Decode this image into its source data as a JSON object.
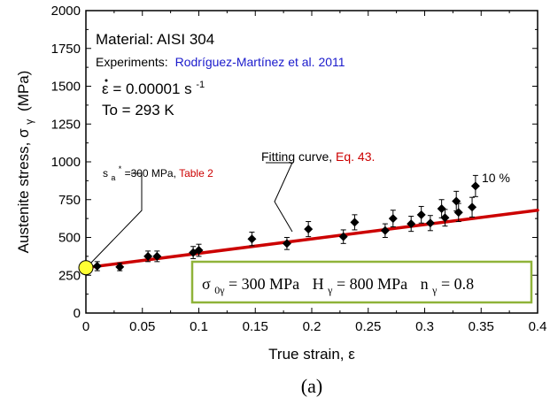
{
  "chart_data": {
    "type": "scatter",
    "xlabel": "True strain, ε",
    "ylabel": "Austenite stress, σ",
    "ylabel_sub": "γ",
    "ylabel_unit": "(MPa)",
    "xlim": [
      0,
      0.4
    ],
    "ylim": [
      0,
      2000
    ],
    "x_ticks": [
      0,
      0.05,
      0.1,
      0.15,
      0.2,
      0.25,
      0.3,
      0.35,
      0.4
    ],
    "x_tick_labels": [
      "0",
      "0.05",
      "0.1",
      "0.15",
      "0.2",
      "0.25",
      "0.3",
      "0.35",
      "0.4"
    ],
    "y_ticks": [
      0,
      250,
      500,
      750,
      1000,
      1250,
      1500,
      1750,
      2000
    ],
    "y_tick_labels": [
      "0",
      "250",
      "500",
      "750",
      "1000",
      "1250",
      "1500",
      "1750",
      "2000"
    ],
    "grid": false,
    "caption": "(a)",
    "colors": {
      "fit": "#cc0000",
      "points": "#000000",
      "start_marker": "#ffff33",
      "box_border": "#8fb339",
      "link": "#1a1acc"
    },
    "info": {
      "material": "Material: AISI 304",
      "experiments_label": "Experiments:",
      "experiments_ref": "Rodríguez-Martínez et al.  2011",
      "strain_rate_symbol": "ε",
      "strain_rate_value": " = 0.00001 s",
      "strain_rate_exp": "-1",
      "temperature": "To = 293 K"
    },
    "annotations": {
      "fit_label": "Fitting curve, ",
      "fit_ref": "Eq. 43.",
      "init_sym": "s",
      "init_sub": "a",
      "init_sup": "*",
      "init_val": "=300 MPa, ",
      "init_ref": "Table 2",
      "percent": "10 %"
    },
    "param_box": {
      "sigma": "σ",
      "sigma_sub": "0γ",
      "sigma_val": " = 300 MPa",
      "h": "H",
      "h_sub": "γ",
      "h_val": " = 800 MPa",
      "n": "n",
      "n_sub": "γ",
      "n_val": " = 0.8"
    },
    "series": [
      {
        "kind": "experiment",
        "x": [
          0.01,
          0.03,
          0.055,
          0.063,
          0.095,
          0.1,
          0.147,
          0.178,
          0.197,
          0.228,
          0.238,
          0.265,
          0.272,
          0.288,
          0.297,
          0.305,
          0.315,
          0.318,
          0.328,
          0.33,
          0.342,
          0.345
        ],
        "y": [
          310,
          305,
          375,
          375,
          400,
          415,
          490,
          460,
          555,
          505,
          600,
          545,
          625,
          590,
          650,
          595,
          690,
          630,
          740,
          665,
          700,
          840
        ],
        "err": [
          30,
          25,
          35,
          35,
          40,
          40,
          45,
          40,
          50,
          45,
          50,
          45,
          55,
          50,
          55,
          50,
          60,
          55,
          65,
          60,
          65,
          70
        ]
      },
      {
        "kind": "fit",
        "x": [
          0,
          0.4
        ],
        "y": [
          300,
          680
        ]
      }
    ],
    "start_point": {
      "x": 0,
      "y": 300
    }
  }
}
